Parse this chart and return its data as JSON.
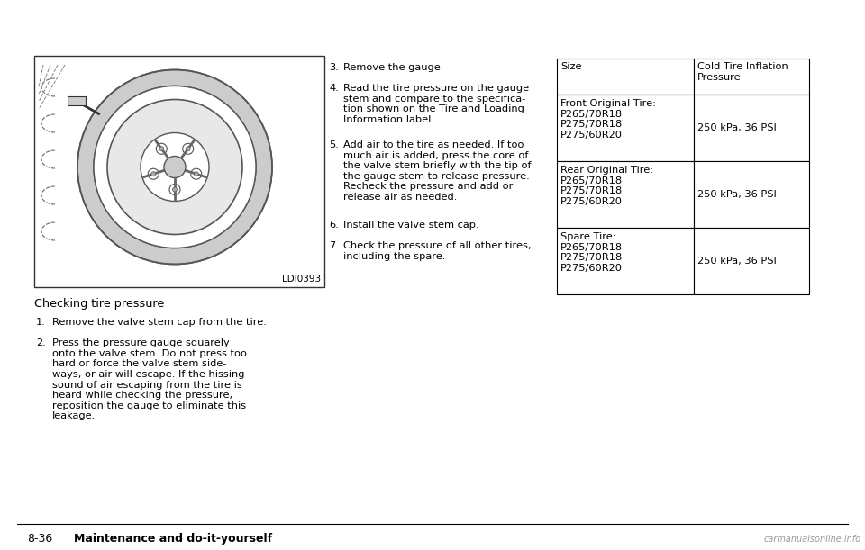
{
  "bg_color": "#ffffff",
  "page_label": "8-36",
  "page_label_bold": "Maintenance and do-it-yourself",
  "watermark": "carmanualsonline.info",
  "image_caption": "LDI0393",
  "section_title": "Checking tire pressure",
  "steps_left": [
    {
      "num": "1.",
      "indent": "   ",
      "text": "Remove the valve stem cap from the tire."
    },
    {
      "num": "2.",
      "indent": "   ",
      "text": "Press the pressure gauge squarely\nonto the valve stem. Do not press too\nhard or force the valve stem side-\nways, or air will escape. If the hissing\nsound of air escaping from the tire is\nheard while checking the pressure,\nreposition the gauge to eliminate this\nleakage."
    }
  ],
  "steps_right": [
    {
      "num": "3.",
      "text": "Remove the gauge."
    },
    {
      "num": "4.",
      "text": "Read the tire pressure on the gauge\nstem and compare to the specifica-\ntion shown on the Tire and Loading\nInformation label."
    },
    {
      "num": "5.",
      "text": "Add air to the tire as needed. If too\nmuch air is added, press the core of\nthe valve stem briefly with the tip of\nthe gauge stem to release pressure.\nRecheck the pressure and add or\nrelease air as needed."
    },
    {
      "num": "6.",
      "text": "Install the valve stem cap."
    },
    {
      "num": "7.",
      "text": "Check the pressure of all other tires,\nincluding the spare."
    }
  ],
  "table_headers": [
    "Size",
    "Cold Tire Inflation\nPressure"
  ],
  "table_rows": [
    [
      "Front Original Tire:\nP265/70R18\nP275/70R18\nP275/60R20",
      "250 kPa, 36 PSI"
    ],
    [
      "Rear Original Tire:\nP265/70R18\nP275/70R18\nP275/60R20",
      "250 kPa, 36 PSI"
    ],
    [
      "Spare Tire:\nP265/70R18\nP275/70R18\nP275/60R20",
      "250 kPa, 36 PSI"
    ]
  ],
  "font_size_body": 8.2,
  "font_size_title": 9.2,
  "font_size_footer": 9.0,
  "font_size_table": 8.2,
  "font_size_caption": 7.5,
  "font_family": "DejaVu Sans"
}
